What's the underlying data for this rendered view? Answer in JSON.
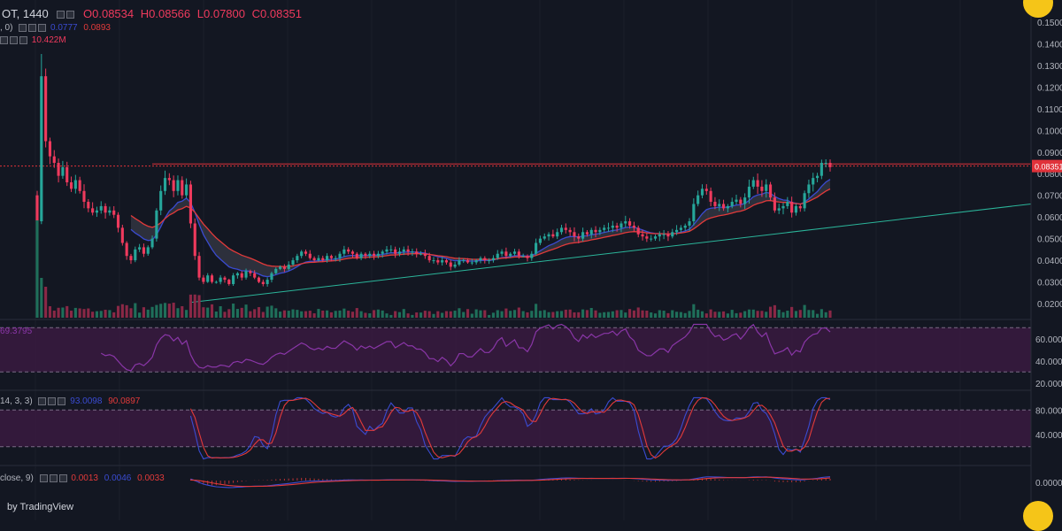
{
  "colors": {
    "background": "#131722",
    "up": "#26a69a",
    "down": "#ef3a5d",
    "ma_blue": "#3a4bd1",
    "ma_red": "#e23a3a",
    "osc_band": "#3c1a42",
    "osc_line": "#8a36a8",
    "trend_line": "#2bb59a",
    "price_line": "#e0323a"
  },
  "header": {
    "symbol_fragment": "OT, 1440",
    "open": "O0.08534",
    "high": "H0.08566",
    "low": "L0.07800",
    "close": "C0.08351"
  },
  "ma_legend": {
    "fragment": ", 0)",
    "value_blue": "0.0777",
    "value_red": "0.0893"
  },
  "volume_legend": {
    "value": "10.422M"
  },
  "rsi_legend": {
    "value": "69.3795"
  },
  "stoch_legend": {
    "fragment": "14, 3, 3)",
    "k": "93.0098",
    "d": "90.0897"
  },
  "macd_legend": {
    "fragment": "close, 9)",
    "hist": "0.0013",
    "macd": "0.0046",
    "signal": "0.0033"
  },
  "footer": {
    "credit": "by TradingView"
  },
  "current_price_label": "0.08351",
  "chart_data": [
    {
      "type": "candlestick",
      "title": "",
      "y_ticks": [
        "0.15000",
        "0.14000",
        "0.13000",
        "0.12000",
        "0.11000",
        "0.10000",
        "0.09000",
        "0.08000",
        "0.07000",
        "0.06000",
        "0.05000",
        "0.04000",
        "0.03000",
        "0.02000"
      ],
      "ylim": [
        0.015,
        0.155
      ],
      "last_close": 0.08351,
      "close_series_approx": [
        0.058,
        0.125,
        0.095,
        0.088,
        0.085,
        0.079,
        0.083,
        0.076,
        0.073,
        0.077,
        0.072,
        0.067,
        0.064,
        0.062,
        0.063,
        0.065,
        0.062,
        0.063,
        0.061,
        0.055,
        0.048,
        0.042,
        0.04,
        0.045,
        0.046,
        0.043,
        0.046,
        0.05,
        0.063,
        0.072,
        0.078,
        0.077,
        0.072,
        0.077,
        0.07,
        0.075,
        0.057,
        0.042,
        0.032,
        0.03,
        0.033,
        0.03,
        0.03,
        0.032,
        0.031,
        0.029,
        0.033,
        0.034,
        0.032,
        0.035,
        0.034,
        0.032,
        0.03,
        0.029,
        0.031,
        0.034,
        0.036,
        0.037,
        0.036,
        0.038,
        0.04,
        0.042,
        0.044,
        0.043,
        0.041,
        0.04,
        0.041,
        0.04,
        0.042,
        0.041,
        0.041,
        0.043,
        0.045,
        0.044,
        0.043,
        0.041,
        0.043,
        0.042,
        0.043,
        0.042,
        0.043,
        0.044,
        0.045,
        0.045,
        0.043,
        0.044,
        0.045,
        0.044,
        0.044,
        0.043,
        0.043,
        0.042,
        0.04,
        0.04,
        0.039,
        0.04,
        0.039,
        0.037,
        0.038,
        0.04,
        0.04,
        0.039,
        0.039,
        0.04,
        0.041,
        0.04,
        0.04,
        0.041,
        0.043,
        0.044,
        0.042,
        0.043,
        0.044,
        0.042,
        0.042,
        0.041,
        0.043,
        0.048,
        0.05,
        0.051,
        0.052,
        0.051,
        0.053,
        0.055,
        0.054,
        0.053,
        0.051,
        0.05,
        0.053,
        0.052,
        0.054,
        0.053,
        0.054,
        0.055,
        0.055,
        0.056,
        0.055,
        0.057,
        0.058,
        0.056,
        0.055,
        0.052,
        0.051,
        0.05,
        0.05,
        0.051,
        0.052,
        0.052,
        0.051,
        0.053,
        0.054,
        0.055,
        0.056,
        0.058,
        0.066,
        0.07,
        0.073,
        0.072,
        0.067,
        0.065,
        0.066,
        0.064,
        0.065,
        0.067,
        0.068,
        0.066,
        0.069,
        0.074,
        0.077,
        0.074,
        0.072,
        0.075,
        0.069,
        0.063,
        0.064,
        0.065,
        0.067,
        0.062,
        0.065,
        0.064,
        0.071,
        0.075,
        0.078,
        0.079,
        0.085,
        0.085,
        0.083
      ],
      "series": [
        {
          "name": "",
          "kind": "moving-average",
          "color": "blue",
          "last": 0.0777
        },
        {
          "name": "",
          "kind": "moving-average",
          "color": "red",
          "last": 0.0893
        }
      ],
      "horizontal_lines": [
        0.08351,
        0.0845
      ],
      "trend_line": {
        "from": [
          0,
          0.0205
        ],
        "to": [
          1,
          0.066
        ]
      }
    },
    {
      "type": "bar",
      "name": "volume",
      "last": "10.422M"
    },
    {
      "type": "line",
      "name": "rsi",
      "y_ticks": [
        "60.0000",
        "40.0000",
        "20.0000"
      ],
      "ylim": [
        15,
        75
      ],
      "bands": [
        70,
        30
      ],
      "last": 69.3795
    },
    {
      "type": "line",
      "name": "stochastic",
      "y_ticks": [
        "80.0000",
        "40.0000"
      ],
      "ylim": [
        -5,
        105
      ],
      "bands": [
        80,
        20
      ],
      "last_k": 93.0098,
      "last_d": 90.0897
    },
    {
      "type": "bar",
      "name": "macd",
      "y_ticks": [
        "0.0000"
      ],
      "last_hist": 0.0013,
      "last_macd": 0.0046,
      "last_signal": 0.0033
    }
  ]
}
